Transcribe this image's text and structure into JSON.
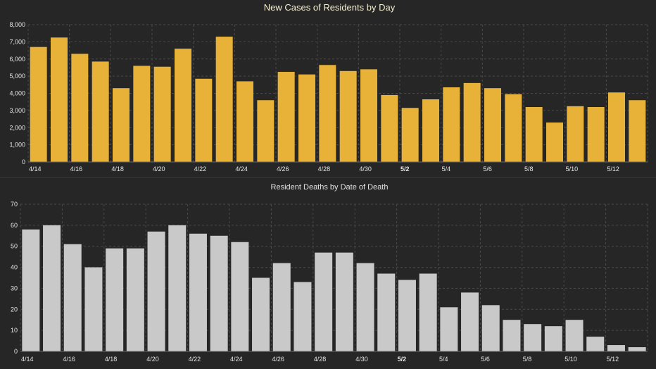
{
  "colors": {
    "background": "#262626",
    "cases_bar": "#e7b237",
    "deaths_bar": "#c9c9c9"
  },
  "chart_data": [
    {
      "type": "bar",
      "title": "New Cases of Residents by Day",
      "xlabel": "",
      "ylabel": "",
      "ylim": [
        0,
        8000
      ],
      "y_ticks": [
        "0",
        "1,000",
        "2,000",
        "3,000",
        "4,000",
        "5,000",
        "6,000",
        "7,000",
        "8,000"
      ],
      "x_tick_labels": [
        "4/14",
        "4/16",
        "4/18",
        "4/20",
        "4/22",
        "4/24",
        "4/26",
        "4/28",
        "4/30",
        "5/2",
        "5/4",
        "5/6",
        "5/8",
        "5/10",
        "5/12"
      ],
      "categories": [
        "4/14",
        "4/15",
        "4/16",
        "4/17",
        "4/18",
        "4/19",
        "4/20",
        "4/21",
        "4/22",
        "4/23",
        "4/24",
        "4/25",
        "4/26",
        "4/27",
        "4/28",
        "4/29",
        "4/30",
        "5/1",
        "5/2",
        "5/3",
        "5/4",
        "5/5",
        "5/6",
        "5/7",
        "5/8",
        "5/9",
        "5/10",
        "5/11",
        "5/12",
        "5/13"
      ],
      "values": [
        6700,
        7250,
        6300,
        5850,
        4300,
        5600,
        5550,
        6600,
        4850,
        7300,
        4700,
        3600,
        5250,
        5100,
        5650,
        5300,
        5400,
        3900,
        3150,
        3650,
        4350,
        4600,
        4300,
        3950,
        3200,
        2300,
        3250,
        3200,
        4050,
        3600
      ],
      "grid": true
    },
    {
      "type": "bar",
      "title": "Resident Deaths by Date of Death",
      "xlabel": "",
      "ylabel": "",
      "ylim": [
        0,
        70
      ],
      "y_ticks": [
        "0",
        "10",
        "20",
        "30",
        "40",
        "50",
        "60",
        "70"
      ],
      "x_tick_labels": [
        "4/14",
        "4/16",
        "4/18",
        "4/20",
        "4/22",
        "4/24",
        "4/26",
        "4/28",
        "4/30",
        "5/2",
        "5/4",
        "5/6",
        "5/8",
        "5/10",
        "5/12"
      ],
      "categories": [
        "4/14",
        "4/15",
        "4/16",
        "4/17",
        "4/18",
        "4/19",
        "4/20",
        "4/21",
        "4/22",
        "4/23",
        "4/24",
        "4/25",
        "4/26",
        "4/27",
        "4/28",
        "4/29",
        "4/30",
        "5/1",
        "5/2",
        "5/3",
        "5/4",
        "5/5",
        "5/6",
        "5/7",
        "5/8",
        "5/9",
        "5/10",
        "5/11",
        "5/12",
        "5/13"
      ],
      "values": [
        58,
        60,
        51,
        40,
        49,
        49,
        57,
        60,
        56,
        55,
        52,
        35,
        42,
        33,
        47,
        47,
        42,
        37,
        34,
        37,
        21,
        28,
        22,
        15,
        13,
        12,
        15,
        7,
        3,
        2
      ],
      "grid": true
    }
  ]
}
